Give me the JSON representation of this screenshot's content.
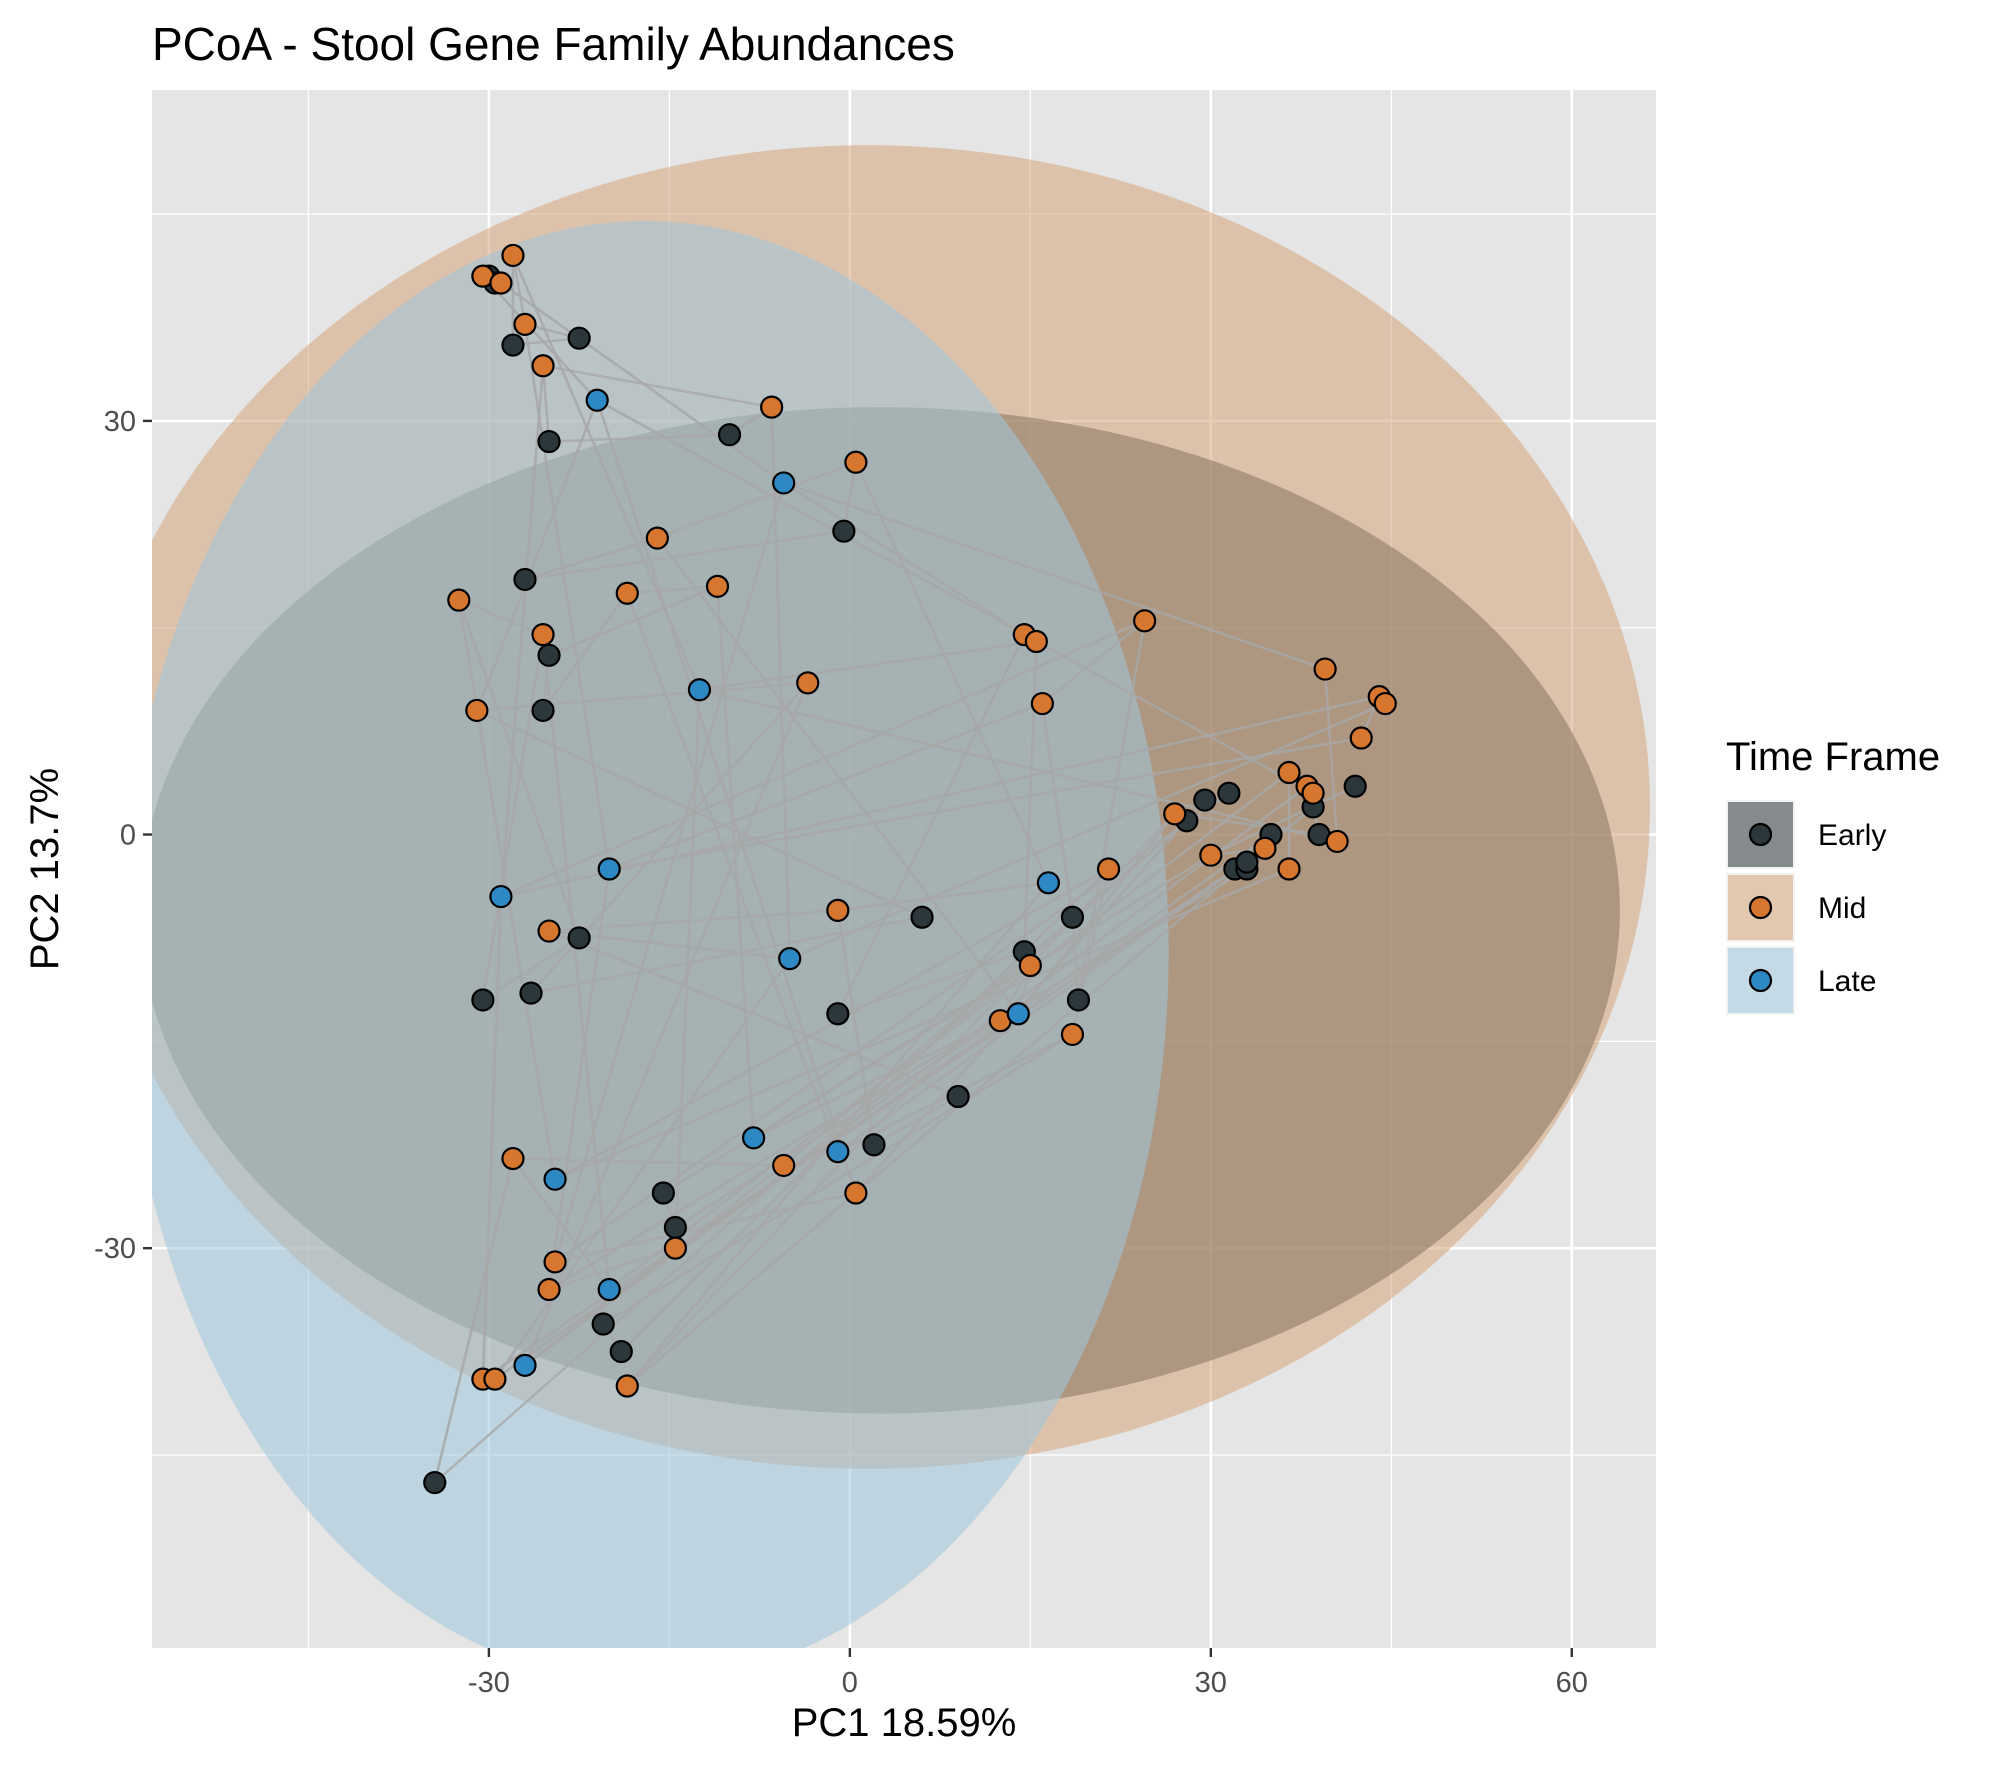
{
  "chart_data": {
    "type": "scatter",
    "title": "PCoA - Stool Gene Family Abundances",
    "xlabel": "PC1 18.59%",
    "ylabel": "PC2 13.7%",
    "xlim": [
      -58,
      67
    ],
    "ylim": [
      -59,
      54
    ],
    "x_ticks": [
      -30,
      0,
      30,
      60
    ],
    "y_ticks": [
      -30,
      0,
      30
    ],
    "grid": true,
    "legend": {
      "title": "Time Frame",
      "placement": "right"
    },
    "colors": {
      "panel_bg": "#e5e5e5",
      "grid": "#ffffff",
      "connector": "#a7a7a7",
      "point_outline": "#000000"
    },
    "series": [
      {
        "name": "Early",
        "color": "#2b373a",
        "ellipse_fill": "#2b373a",
        "ellipse": {
          "cx": 2.5,
          "cy": -5.5,
          "rx": 61.5,
          "ry": 36.5
        },
        "points": [
          [
            -30,
            40.5
          ],
          [
            -29.5,
            40
          ],
          [
            -28,
            35.5
          ],
          [
            -22.5,
            36
          ],
          [
            -25,
            28.5
          ],
          [
            -10,
            29
          ],
          [
            -0.5,
            22
          ],
          [
            -27,
            18.5
          ],
          [
            -25,
            13
          ],
          [
            -25.5,
            9
          ],
          [
            -22.5,
            -7.5
          ],
          [
            -30.5,
            -12
          ],
          [
            -26.5,
            -11.5
          ],
          [
            6,
            -6
          ],
          [
            -1,
            -13
          ],
          [
            14.5,
            -8.5
          ],
          [
            18.5,
            -6
          ],
          [
            19,
            -12
          ],
          [
            9,
            -19
          ],
          [
            2,
            -22.5
          ],
          [
            -15.5,
            -26
          ],
          [
            -14.5,
            -28.5
          ],
          [
            -20.5,
            -35.5
          ],
          [
            -19,
            -37.5
          ],
          [
            -34.5,
            -47
          ],
          [
            28,
            1
          ],
          [
            29.5,
            2.5
          ],
          [
            31.5,
            3
          ],
          [
            32,
            -2.5
          ],
          [
            33,
            -2.5
          ],
          [
            33,
            -2
          ],
          [
            35,
            0
          ],
          [
            38.5,
            2
          ],
          [
            39,
            0
          ],
          [
            42,
            3.5
          ]
        ]
      },
      {
        "name": "Mid",
        "color": "#d6762f",
        "ellipse_fill": "#d6a57c",
        "ellipse": {
          "cx": 1.5,
          "cy": 2,
          "rx": 65,
          "ry": 48
        },
        "points": [
          [
            -30.5,
            40.5
          ],
          [
            -29,
            40
          ],
          [
            -28,
            42
          ],
          [
            -27,
            37
          ],
          [
            -25.5,
            34
          ],
          [
            -6.5,
            31
          ],
          [
            0.5,
            27
          ],
          [
            -16,
            21.5
          ],
          [
            -11,
            18
          ],
          [
            -18.5,
            17.5
          ],
          [
            -32.5,
            17
          ],
          [
            -25.5,
            14.5
          ],
          [
            -3.5,
            11
          ],
          [
            -31,
            9
          ],
          [
            14.5,
            14.5
          ],
          [
            15.5,
            14
          ],
          [
            16,
            9.5
          ],
          [
            24.5,
            15.5
          ],
          [
            -25,
            -7
          ],
          [
            -1,
            -5.5
          ],
          [
            15,
            -9.5
          ],
          [
            12.5,
            -13.5
          ],
          [
            18.5,
            -14.5
          ],
          [
            21.5,
            -2.5
          ],
          [
            -28,
            -23.5
          ],
          [
            -5.5,
            -24
          ],
          [
            0.5,
            -26
          ],
          [
            -24.5,
            -31
          ],
          [
            -14.5,
            -30
          ],
          [
            -25,
            -33
          ],
          [
            -30.5,
            -39.5
          ],
          [
            -29.5,
            -39.5
          ],
          [
            -18.5,
            -40
          ],
          [
            27,
            1.5
          ],
          [
            30,
            -1.5
          ],
          [
            34.5,
            -1
          ],
          [
            36.5,
            -2.5
          ],
          [
            36.5,
            4.5
          ],
          [
            38,
            3.5
          ],
          [
            38.5,
            3
          ],
          [
            39.5,
            12
          ],
          [
            40.5,
            -0.5
          ],
          [
            42.5,
            7
          ],
          [
            44,
            10
          ],
          [
            44.5,
            9.5
          ]
        ]
      },
      {
        "name": "Late",
        "color": "#2d88c4",
        "ellipse_fill": "#9fc6dd",
        "ellipse": {
          "cx": -17,
          "cy": -8.5,
          "rx": 43.5,
          "ry": 53
        },
        "points": [
          [
            -21,
            31.5
          ],
          [
            -5.5,
            25.5
          ],
          [
            -12.5,
            10.5
          ],
          [
            -20,
            -2.5
          ],
          [
            -29,
            -4.5
          ],
          [
            -5,
            -9
          ],
          [
            16.5,
            -3.5
          ],
          [
            14,
            -13
          ],
          [
            -8,
            -22
          ],
          [
            -1,
            -23
          ],
          [
            -24.5,
            -25
          ],
          [
            -20,
            -33
          ],
          [
            -27,
            -38.5
          ]
        ]
      }
    ]
  }
}
